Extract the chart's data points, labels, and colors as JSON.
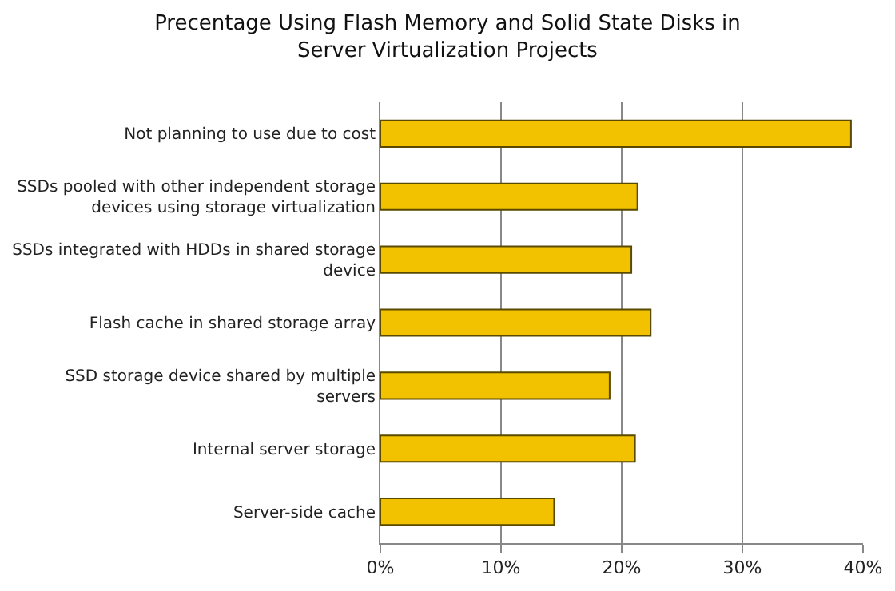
{
  "chart_data": {
    "type": "bar",
    "orientation": "horizontal",
    "title": "Precentage Using Flash Memory and Solid State Disks in Server Virtualization Projects",
    "categories": [
      "Not planning to use due to cost",
      "SSDs pooled with other independent storage devices using storage virtualization",
      "SSDs integrated with HDDs in shared storage device",
      "Flash cache in shared storage array",
      "SSD storage device shared by multiple servers",
      "Internal server storage",
      "Server-side cache"
    ],
    "values": [
      39.0,
      21.3,
      20.8,
      22.4,
      19.0,
      21.1,
      14.4
    ],
    "color": "#f2c200",
    "xlim": [
      0,
      40
    ],
    "xticks": [
      {
        "value": 0,
        "label": "0%"
      },
      {
        "value": 10,
        "label": "10%"
      },
      {
        "value": 20,
        "label": "20%"
      },
      {
        "value": 30,
        "label": "30%"
      },
      {
        "value": 40,
        "label": "40%"
      }
    ],
    "grid": "x"
  }
}
